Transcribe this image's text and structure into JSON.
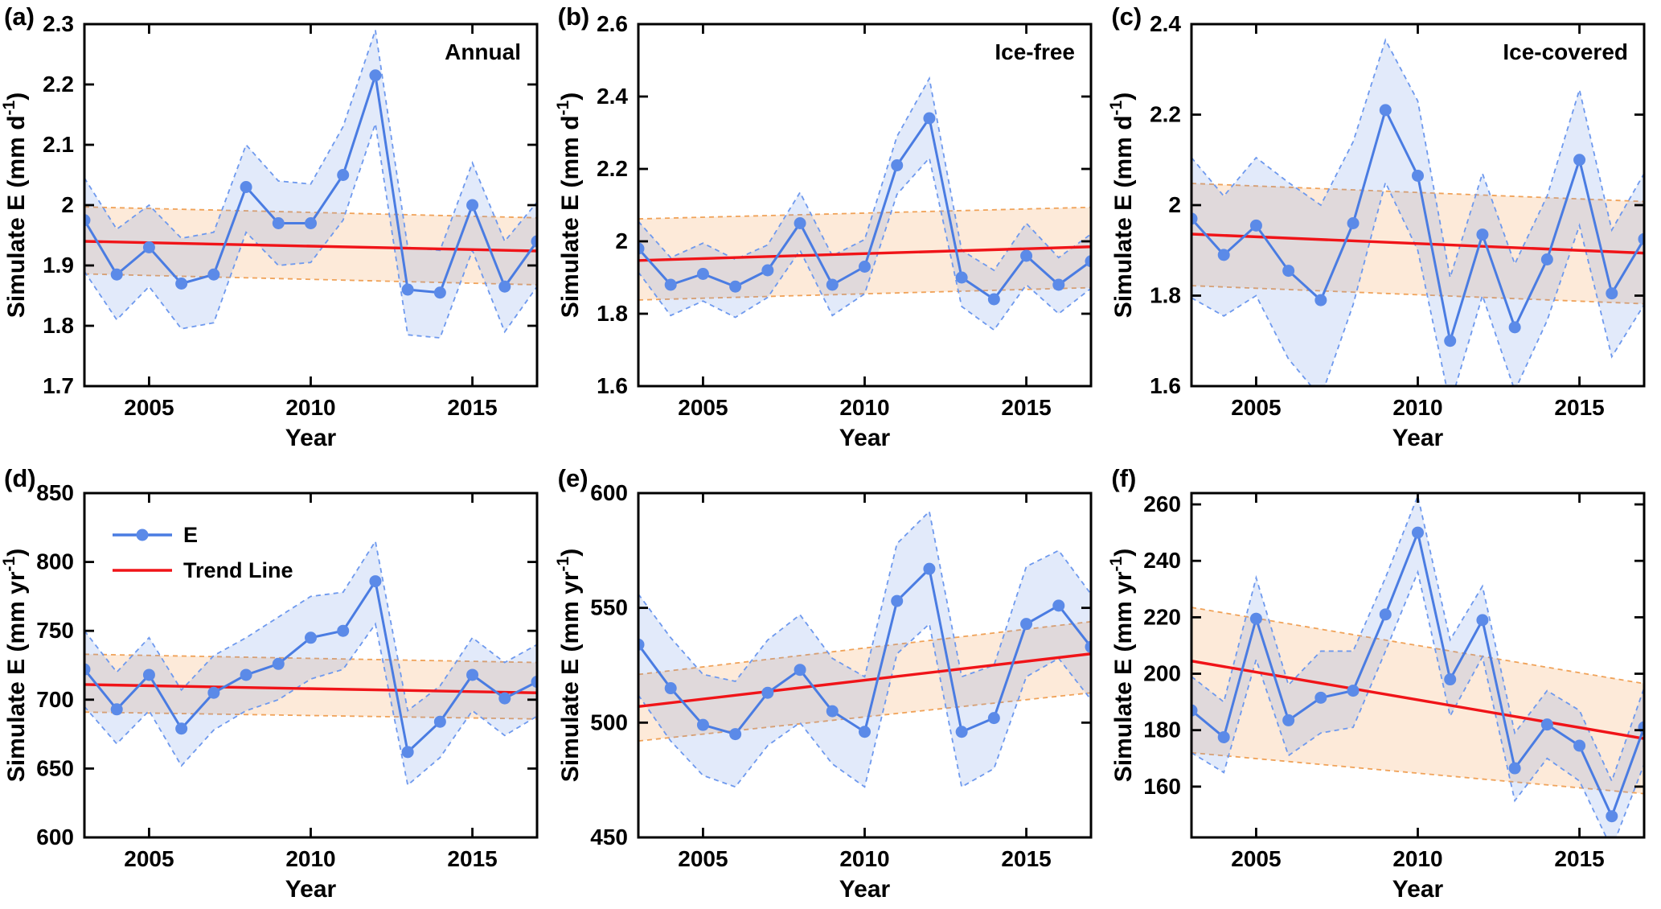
{
  "figure": {
    "background": "#ffffff",
    "xlabel": "Year",
    "x_range": [
      2003,
      2017
    ],
    "x_ticks": [
      2005,
      2010,
      2015
    ],
    "x_tick_labels": [
      "2005",
      "2010",
      "2015"
    ],
    "years": [
      2003,
      2004,
      2005,
      2006,
      2007,
      2008,
      2009,
      2010,
      2011,
      2012,
      2013,
      2014,
      2015,
      2016,
      2017
    ]
  },
  "legend": {
    "e": "E",
    "trend": "Trend Line",
    "location": "upper-left-panel-d"
  },
  "colors": {
    "e_line": "#4a7ce2",
    "e_marker": "#5b8ae8",
    "band_blue_fill": "rgba(110,150,230,0.20)",
    "band_blue_edge": "#6e99ee",
    "band_orange_fill": "rgba(246,158,80,0.22)",
    "band_orange_edge": "#f0a258",
    "trend_line": "#f01418",
    "axis": "#000000",
    "text": "#000000"
  },
  "chart_data": [
    {
      "id": "a",
      "panel_label": "(a)",
      "type": "line",
      "row": 0,
      "title": "Annual",
      "ylabel": {
        "pre": "Simulate E (mm d",
        "sup": "-1",
        "post": ")"
      },
      "ylim": [
        1.7,
        2.3
      ],
      "yticks": [
        1.7,
        1.8,
        1.9,
        2,
        2.1,
        2.2,
        2.3
      ],
      "ytick_labels": [
        "1.7",
        "1.8",
        "1.9",
        "2",
        "2.1",
        "2.2",
        "2.3"
      ],
      "e_values": [
        1.975,
        1.885,
        1.93,
        1.87,
        1.885,
        2.03,
        1.97,
        1.97,
        2.05,
        2.215,
        1.86,
        1.855,
        2.0,
        1.865,
        1.94
      ],
      "band_lo": [
        1.89,
        1.81,
        1.865,
        1.795,
        1.805,
        1.955,
        1.9,
        1.905,
        1.975,
        2.135,
        1.785,
        1.78,
        1.925,
        1.79,
        1.865
      ],
      "band_hi": [
        2.045,
        1.96,
        2.0,
        1.945,
        1.955,
        2.1,
        2.04,
        2.035,
        2.13,
        2.29,
        1.93,
        1.925,
        2.07,
        1.94,
        2.005
      ],
      "trend": [
        1.94,
        1.924
      ],
      "orange_top": [
        1.997,
        1.979
      ],
      "orange_bottom": [
        1.886,
        1.868
      ]
    },
    {
      "id": "b",
      "panel_label": "(b)",
      "type": "line",
      "row": 0,
      "title": "Ice-free",
      "ylabel": {
        "pre": "Simulate E (mm d",
        "sup": "-1",
        "post": ")"
      },
      "ylim": [
        1.6,
        2.6
      ],
      "yticks": [
        1.6,
        1.8,
        2,
        2.2,
        2.4,
        2.6
      ],
      "ytick_labels": [
        "1.6",
        "1.8",
        "2",
        "2.2",
        "2.4",
        "2.6"
      ],
      "e_values": [
        1.98,
        1.88,
        1.91,
        1.875,
        1.92,
        2.05,
        1.88,
        1.93,
        2.21,
        2.34,
        1.9,
        1.84,
        1.96,
        1.88,
        1.945
      ],
      "band_lo": [
        1.915,
        1.795,
        1.835,
        1.79,
        1.845,
        1.975,
        1.795,
        1.855,
        2.13,
        2.23,
        1.82,
        1.755,
        1.88,
        1.8,
        1.87
      ],
      "band_hi": [
        2.055,
        1.955,
        1.995,
        1.95,
        1.99,
        2.135,
        1.96,
        2.005,
        2.29,
        2.45,
        1.975,
        1.92,
        2.05,
        1.955,
        2.02
      ],
      "trend": [
        1.947,
        1.985
      ],
      "orange_top": [
        2.062,
        2.094
      ],
      "orange_bottom": [
        1.838,
        1.872
      ]
    },
    {
      "id": "c",
      "panel_label": "(c)",
      "type": "line",
      "row": 0,
      "title": "Ice-covered",
      "ylabel": {
        "pre": "Simulate E (mm d",
        "sup": "-1",
        "post": ")"
      },
      "ylim": [
        1.6,
        2.4
      ],
      "yticks": [
        1.6,
        1.8,
        2,
        2.2,
        2.4
      ],
      "ytick_labels": [
        "1.6",
        "1.8",
        "2",
        "2.2",
        "2.4"
      ],
      "e_values": [
        1.97,
        1.89,
        1.955,
        1.855,
        1.79,
        1.96,
        2.21,
        2.065,
        1.7,
        1.935,
        1.73,
        1.88,
        2.1,
        1.805,
        1.925
      ],
      "band_lo": [
        1.795,
        1.755,
        1.8,
        1.66,
        1.575,
        1.78,
        2.05,
        1.9,
        1.56,
        1.8,
        1.59,
        1.745,
        1.955,
        1.665,
        1.78
      ],
      "band_hi": [
        2.105,
        2.02,
        2.105,
        2.05,
        2.0,
        2.14,
        2.365,
        2.23,
        1.84,
        2.07,
        1.87,
        2.02,
        2.255,
        1.945,
        2.07
      ],
      "trend": [
        1.936,
        1.894
      ],
      "orange_top": [
        2.048,
        2.008
      ],
      "orange_bottom": [
        1.822,
        1.782
      ]
    },
    {
      "id": "d",
      "panel_label": "(d)",
      "type": "line",
      "row": 1,
      "title": "",
      "ylabel": {
        "pre": "Simulate E (mm yr",
        "sup": "-1",
        "post": ")"
      },
      "ylim": [
        600,
        850
      ],
      "yticks": [
        600,
        650,
        700,
        750,
        800,
        850
      ],
      "ytick_labels": [
        "600",
        "650",
        "700",
        "750",
        "800",
        "850"
      ],
      "e_values": [
        722,
        693,
        718,
        679,
        705,
        718,
        726,
        745,
        750,
        786,
        662,
        684,
        718,
        701,
        713
      ],
      "band_lo": [
        695,
        668,
        692,
        652,
        678,
        692,
        700,
        715,
        722,
        755,
        638,
        658,
        692,
        674,
        688
      ],
      "band_hi": [
        750,
        720,
        745,
        707,
        732,
        745,
        760,
        775,
        778,
        815,
        692,
        710,
        745,
        727,
        740
      ],
      "trend": [
        711,
        705
      ],
      "orange_top": [
        733,
        727
      ],
      "orange_bottom": [
        691,
        686
      ],
      "show_legend": true
    },
    {
      "id": "e",
      "panel_label": "(e)",
      "type": "line",
      "row": 1,
      "title": "",
      "ylabel": {
        "pre": "Simulate E (mm yr",
        "sup": "-1",
        "post": ")"
      },
      "ylim": [
        450,
        600
      ],
      "yticks": [
        450,
        500,
        550,
        600
      ],
      "ytick_labels": [
        "450",
        "500",
        "550",
        "600"
      ],
      "e_values": [
        534,
        515,
        499,
        495,
        513,
        523,
        505,
        496,
        553,
        567,
        496,
        502,
        543,
        551,
        533
      ],
      "band_lo": [
        512,
        492,
        477,
        472,
        490,
        500,
        482,
        472,
        530,
        543,
        472,
        480,
        520,
        528,
        510
      ],
      "band_hi": [
        556,
        537,
        521,
        518,
        536,
        547,
        528,
        520,
        578,
        592,
        520,
        525,
        568,
        575,
        556
      ],
      "trend": [
        507,
        530
      ],
      "orange_top": [
        521,
        544
      ],
      "orange_bottom": [
        492,
        513
      ]
    },
    {
      "id": "f",
      "panel_label": "(f)",
      "type": "line",
      "row": 1,
      "title": "",
      "ylabel": {
        "pre": "Simulate E (mm yr",
        "sup": "-1",
        "post": ")"
      },
      "ylim": [
        142,
        264
      ],
      "yticks": [
        160,
        180,
        200,
        220,
        240,
        260
      ],
      "ytick_labels": [
        "160",
        "180",
        "200",
        "220",
        "240",
        "260"
      ],
      "e_values": [
        187,
        177.5,
        219.5,
        183.5,
        191.5,
        194,
        221,
        250,
        198,
        219,
        166.5,
        182,
        174.5,
        149.5,
        181
      ],
      "band_lo": [
        172,
        165,
        205,
        171,
        179,
        181,
        208,
        236,
        185,
        206,
        155,
        170,
        162,
        138,
        168
      ],
      "band_hi": [
        199,
        190,
        234,
        196,
        208,
        208,
        234,
        263,
        212,
        231,
        179,
        194,
        187,
        162,
        195
      ],
      "trend": [
        204.5,
        177
      ],
      "orange_top": [
        223.5,
        196.5
      ],
      "orange_bottom": [
        172,
        157.5
      ]
    }
  ]
}
